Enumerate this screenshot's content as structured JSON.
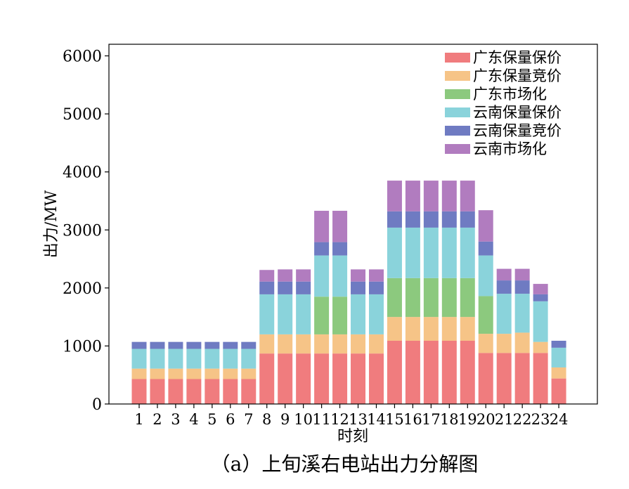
{
  "chart_data": {
    "type": "bar",
    "stacked": true,
    "caption": "（a）上旬溪右电站出力分解图",
    "xlabel": "时刻",
    "ylabel": "出力/MW",
    "ylim": [
      0,
      6200
    ],
    "yticks": [
      0,
      1000,
      2000,
      3000,
      4000,
      5000,
      6000
    ],
    "grid": false,
    "legend_position": "top-right",
    "categories": [
      "1",
      "2",
      "3",
      "4",
      "5",
      "6",
      "7",
      "8",
      "9",
      "10",
      "11",
      "12",
      "13",
      "14",
      "15",
      "16",
      "17",
      "18",
      "19",
      "20",
      "21",
      "22",
      "23",
      "24"
    ],
    "series": [
      {
        "name": "广东保量保价",
        "color": "#f07c7e",
        "values": [
          430,
          430,
          430,
          430,
          430,
          430,
          430,
          870,
          870,
          870,
          870,
          870,
          870,
          870,
          1090,
          1090,
          1090,
          1090,
          1090,
          880,
          880,
          880,
          880,
          440
        ]
      },
      {
        "name": "广东保量竞价",
        "color": "#f6c487",
        "values": [
          180,
          180,
          180,
          180,
          180,
          180,
          180,
          330,
          330,
          330,
          330,
          330,
          330,
          330,
          410,
          410,
          410,
          410,
          410,
          330,
          330,
          350,
          190,
          190
        ]
      },
      {
        "name": "广东市场化",
        "color": "#8cc97e",
        "values": [
          0,
          0,
          0,
          0,
          0,
          0,
          0,
          0,
          0,
          0,
          650,
          650,
          0,
          0,
          670,
          670,
          670,
          670,
          670,
          650,
          0,
          0,
          0,
          0
        ]
      },
      {
        "name": "云南保量保价",
        "color": "#8ad3db",
        "values": [
          340,
          340,
          340,
          340,
          340,
          340,
          340,
          690,
          690,
          690,
          710,
          710,
          690,
          690,
          870,
          870,
          870,
          870,
          870,
          700,
          690,
          670,
          700,
          340
        ]
      },
      {
        "name": "云南保量竞价",
        "color": "#6f7bc2",
        "values": [
          120,
          120,
          120,
          120,
          120,
          120,
          120,
          220,
          220,
          220,
          230,
          230,
          220,
          220,
          280,
          280,
          280,
          280,
          280,
          240,
          230,
          230,
          120,
          120
        ]
      },
      {
        "name": "云南市场化",
        "color": "#b17cbf",
        "values": [
          0,
          0,
          0,
          0,
          0,
          0,
          0,
          200,
          210,
          210,
          540,
          540,
          210,
          210,
          530,
          530,
          530,
          530,
          530,
          540,
          200,
          200,
          180,
          0
        ]
      }
    ]
  }
}
